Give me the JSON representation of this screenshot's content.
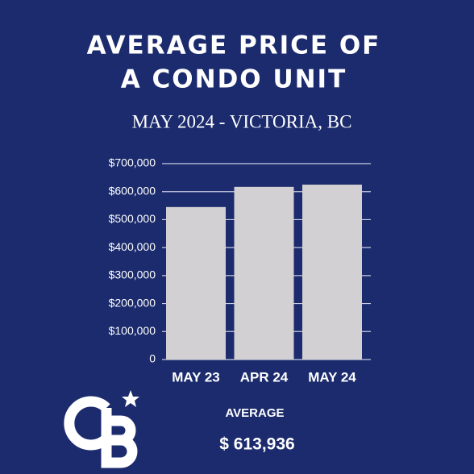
{
  "chart_data": {
    "type": "bar",
    "title": [
      "AVERAGE PRICE OF",
      "A CONDO UNIT"
    ],
    "subtitle": "MAY 2024 - VICTORIA, BC",
    "categories": [
      "MAY 23",
      "APR 24",
      "MAY 24"
    ],
    "values": [
      545000,
      617000,
      625000
    ],
    "color": "#d2d0d2",
    "ylim": [
      0,
      700000
    ],
    "yticks": [
      0,
      {
        "value": 100000,
        "label": "$100,000"
      },
      {
        "value": 200000,
        "label": "$200,000"
      },
      {
        "value": 300000,
        "label": "$300,000"
      },
      {
        "value": 400000,
        "label": "$400,000"
      },
      {
        "value": 500000,
        "label": "$500,000"
      },
      {
        "value": 600000,
        "label": "$600,000"
      },
      {
        "value": 700000,
        "label": "$700,000"
      }
    ],
    "grid": true,
    "annotations": [
      "AVERAGE",
      "$ 613,936"
    ]
  }
}
